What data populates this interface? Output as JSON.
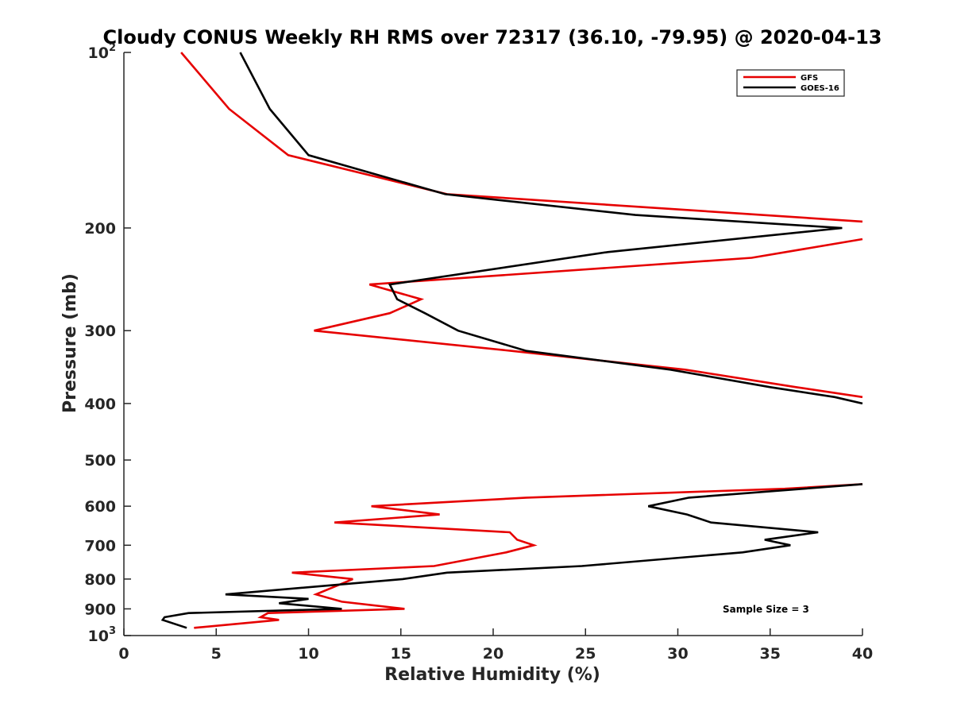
{
  "chart_data": {
    "type": "line",
    "title": "Cloudy CONUS Weekly RH RMS over 72317 (36.10, -79.95) @ 2020-04-13",
    "xlabel": "Relative Humidity (%)",
    "ylabel": "Pressure (mb)",
    "xlim": [
      0,
      40
    ],
    "ylim": [
      100,
      1000
    ],
    "yscale": "log",
    "y_reversed": true,
    "grid": false,
    "legend_position": "top-right",
    "x_ticks": [
      "0",
      "5",
      "10",
      "15",
      "20",
      "25",
      "30",
      "35",
      "40"
    ],
    "y_ticks": [
      {
        "value": 100,
        "base": "10",
        "exp": "2"
      },
      {
        "value": 200,
        "label": "200"
      },
      {
        "value": 300,
        "label": "300"
      },
      {
        "value": 400,
        "label": "400"
      },
      {
        "value": 500,
        "label": "500"
      },
      {
        "value": 600,
        "label": "600"
      },
      {
        "value": 700,
        "label": "700"
      },
      {
        "value": 800,
        "label": "800"
      },
      {
        "value": 900,
        "label": "900"
      },
      {
        "value": 1000,
        "base": "10",
        "exp": "3"
      }
    ],
    "annotation": "Sample Size = 3",
    "series": [
      {
        "name": "GFS",
        "color": "#e60000",
        "segments": [
          [
            [
              3.1,
              100
            ],
            [
              5.7,
              125
            ],
            [
              8.9,
              150
            ],
            [
              17.5,
              175
            ],
            [
              40,
              195
            ]
          ],
          [
            [
              40,
              209
            ],
            [
              34,
              225
            ],
            [
              13.3,
              250
            ],
            [
              16.1,
              265
            ],
            [
              14.4,
              280
            ],
            [
              10.3,
              300
            ],
            [
              21,
              325
            ],
            [
              30.4,
              350
            ],
            [
              36.4,
              375
            ],
            [
              40,
              390
            ]
          ],
          [
            [
              40,
              550
            ],
            [
              35.8,
              560
            ],
            [
              21.8,
              580
            ],
            [
              13.4,
              600
            ],
            [
              17.1,
              620
            ],
            [
              11.4,
              640
            ],
            [
              20.9,
              665
            ],
            [
              21.3,
              685
            ],
            [
              22.2,
              700
            ],
            [
              20.7,
              720
            ],
            [
              16.8,
              760
            ],
            [
              9.1,
              780
            ],
            [
              12.4,
              800
            ],
            [
              10.4,
              850
            ],
            [
              11.8,
              875
            ],
            [
              15.2,
              900
            ],
            [
              7.8,
              915
            ],
            [
              7.4,
              930
            ],
            [
              8.4,
              940
            ],
            [
              3.8,
              970
            ]
          ]
        ]
      },
      {
        "name": "GOES-16",
        "color": "#000000",
        "segments": [
          [
            [
              6.3,
              100
            ],
            [
              7.9,
              125
            ],
            [
              10,
              150
            ],
            [
              17.4,
              175
            ],
            [
              27.7,
              190
            ],
            [
              38.9,
              200
            ],
            [
              26.2,
              220
            ],
            [
              14.4,
              250
            ],
            [
              14.8,
              265
            ],
            [
              16.3,
              280
            ],
            [
              18.1,
              300
            ],
            [
              21.8,
              325
            ],
            [
              29.6,
              350
            ],
            [
              35,
              375
            ],
            [
              38.5,
              390
            ],
            [
              40,
              400
            ]
          ],
          [
            [
              40,
              550
            ],
            [
              30.6,
              580
            ],
            [
              28.4,
              600
            ],
            [
              30.5,
              620
            ],
            [
              31.8,
              640
            ],
            [
              37.6,
              665
            ],
            [
              34.7,
              685
            ],
            [
              36.1,
              700
            ],
            [
              33.5,
              720
            ],
            [
              24.8,
              760
            ],
            [
              17.5,
              780
            ],
            [
              15.1,
              800
            ],
            [
              5.5,
              850
            ],
            [
              10,
              865
            ],
            [
              8.4,
              880
            ],
            [
              11.8,
              900
            ],
            [
              3.5,
              915
            ],
            [
              2.2,
              930
            ],
            [
              2.1,
              940
            ],
            [
              3.4,
              970
            ]
          ]
        ]
      }
    ]
  }
}
